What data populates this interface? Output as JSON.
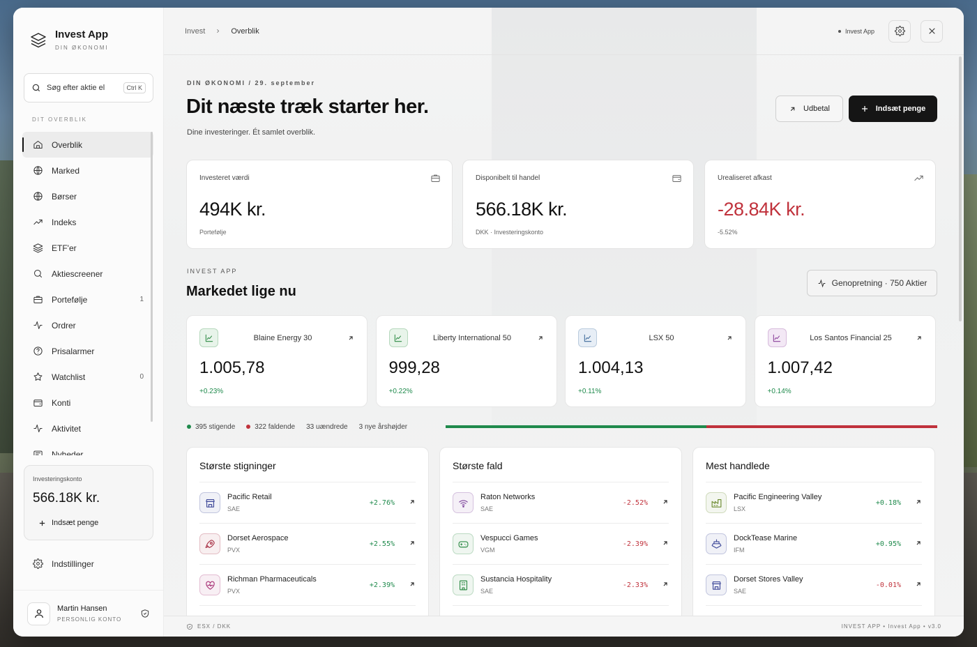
{
  "brand": {
    "title": "Invest App",
    "subtitle": "DIN ØKONOMI"
  },
  "search": {
    "placeholder": "Søg efter aktie el",
    "shortcut": "Ctrl K"
  },
  "sidebar": {
    "section_label": "DIT OVERBLIK",
    "items": [
      {
        "label": "Overblik",
        "icon": "home-icon",
        "count": "",
        "active": true
      },
      {
        "label": "Marked",
        "icon": "globe-icon",
        "count": ""
      },
      {
        "label": "Børser",
        "icon": "globe-icon",
        "count": ""
      },
      {
        "label": "Indeks",
        "icon": "trend-icon",
        "count": ""
      },
      {
        "label": "ETF'er",
        "icon": "layers-icon",
        "count": ""
      },
      {
        "label": "Aktiescreener",
        "icon": "search-icon",
        "count": ""
      },
      {
        "label": "Portefølje",
        "icon": "briefcase-icon",
        "count": "1"
      },
      {
        "label": "Ordrer",
        "icon": "activity-icon",
        "count": ""
      },
      {
        "label": "Prisalarmer",
        "icon": "help-icon",
        "count": ""
      },
      {
        "label": "Watchlist",
        "icon": "star-icon",
        "count": "0"
      },
      {
        "label": "Konti",
        "icon": "wallet-icon",
        "count": ""
      },
      {
        "label": "Aktivitet",
        "icon": "activity-icon",
        "count": ""
      },
      {
        "label": "Nyheder",
        "icon": "news-icon",
        "count": ""
      }
    ],
    "account": {
      "label": "Investeringskonto",
      "value": "566.18K kr.",
      "deposit_label": "Indsæt penge"
    },
    "settings_label": "Indstillinger",
    "user": {
      "name": "Martin Hansen",
      "subtitle": "PERSONLIG KONTO"
    }
  },
  "topbar": {
    "breadcrumb": [
      "Invest",
      "Overblik"
    ],
    "status": "Invest App"
  },
  "hero": {
    "eyebrow": "DIN ØKONOMI / 29. september",
    "title": "Dit næste træk starter her.",
    "subtitle": "Dine investeringer. Ét samlet overblik.",
    "withdraw_label": "Udbetal",
    "deposit_label": "Indsæt penge"
  },
  "stats": [
    {
      "label": "Investeret værdi",
      "value": "494K kr.",
      "sub": "Portefølje",
      "icon": "briefcase-icon",
      "negative": false
    },
    {
      "label": "Disponibelt til handel",
      "value": "566.18K kr.",
      "sub": "DKK · Investeringskonto",
      "icon": "wallet-icon",
      "negative": false
    },
    {
      "label": "Urealiseret afkast",
      "value": "-28.84K kr.",
      "sub": "-5.52%",
      "icon": "trend-up-icon",
      "negative": true
    }
  ],
  "market": {
    "eyebrow": "INVEST APP",
    "title": "Markedet lige nu",
    "regime": "Genopretning · 750 Aktier",
    "indices": [
      {
        "name": "Blaine Energy 30",
        "value": "1.005,78",
        "change": "+0.23%",
        "color": "#2e8b45",
        "bg": "#e8f4ea"
      },
      {
        "name": "Liberty International 50",
        "value": "999,28",
        "change": "+0.22%",
        "color": "#2e8b45",
        "bg": "#e8f4ea"
      },
      {
        "name": "LSX 50",
        "value": "1.004,13",
        "change": "+0.11%",
        "color": "#3f6b9a",
        "bg": "#e7eef6"
      },
      {
        "name": "Los Santos Financial 25",
        "value": "1.007,42",
        "change": "+0.14%",
        "color": "#8a3f9a",
        "bg": "#f3e8f5"
      }
    ],
    "breadth": {
      "advancing": "395 stigende",
      "declining": "322 faldende",
      "unchanged": "33 uændrede",
      "highs": "3 nye årshøjder",
      "advancing_share": 0.53,
      "up_color": "#1f8a4c",
      "down_color": "#c0323c"
    }
  },
  "panels": [
    {
      "title": "Største stigninger",
      "rows": [
        {
          "name": "Pacific Retail",
          "ticker": "SAE",
          "change": "+2.76%",
          "dir": "up",
          "icon": "store-icon",
          "color": "#3f4a9a"
        },
        {
          "name": "Dorset Aerospace",
          "ticker": "PVX",
          "change": "+2.55%",
          "dir": "up",
          "icon": "rocket-icon",
          "color": "#a83246"
        },
        {
          "name": "Richman Pharmaceuticals",
          "ticker": "PVX",
          "change": "+2.39%",
          "dir": "up",
          "icon": "heart-icon",
          "color": "#a83276"
        }
      ]
    },
    {
      "title": "Største fald",
      "rows": [
        {
          "name": "Raton Networks",
          "ticker": "SAE",
          "change": "-2.52%",
          "dir": "down",
          "icon": "wifi-icon",
          "color": "#7a3f9a"
        },
        {
          "name": "Vespucci Games",
          "ticker": "VGM",
          "change": "-2.39%",
          "dir": "down",
          "icon": "gamepad-icon",
          "color": "#2e8b45"
        },
        {
          "name": "Sustancia Hospitality",
          "ticker": "SAE",
          "change": "-2.33%",
          "dir": "down",
          "icon": "building-icon",
          "color": "#2e8b45"
        }
      ]
    },
    {
      "title": "Mest handlede",
      "rows": [
        {
          "name": "Pacific Engineering Valley",
          "ticker": "LSX",
          "change": "+0.18%",
          "dir": "up",
          "icon": "factory-icon",
          "color": "#6b8a2e"
        },
        {
          "name": "DockTease Marine",
          "ticker": "IFM",
          "change": "+0.95%",
          "dir": "up",
          "icon": "ship-icon",
          "color": "#3f4a9a"
        },
        {
          "name": "Dorset Stores Valley",
          "ticker": "SAE",
          "change": "-0.01%",
          "dir": "down",
          "icon": "store-icon",
          "color": "#3f4a9a"
        }
      ]
    }
  ],
  "footer": {
    "left": "ESX / DKK",
    "right": "INVEST APP  •  Invest App  •  v3.0"
  }
}
